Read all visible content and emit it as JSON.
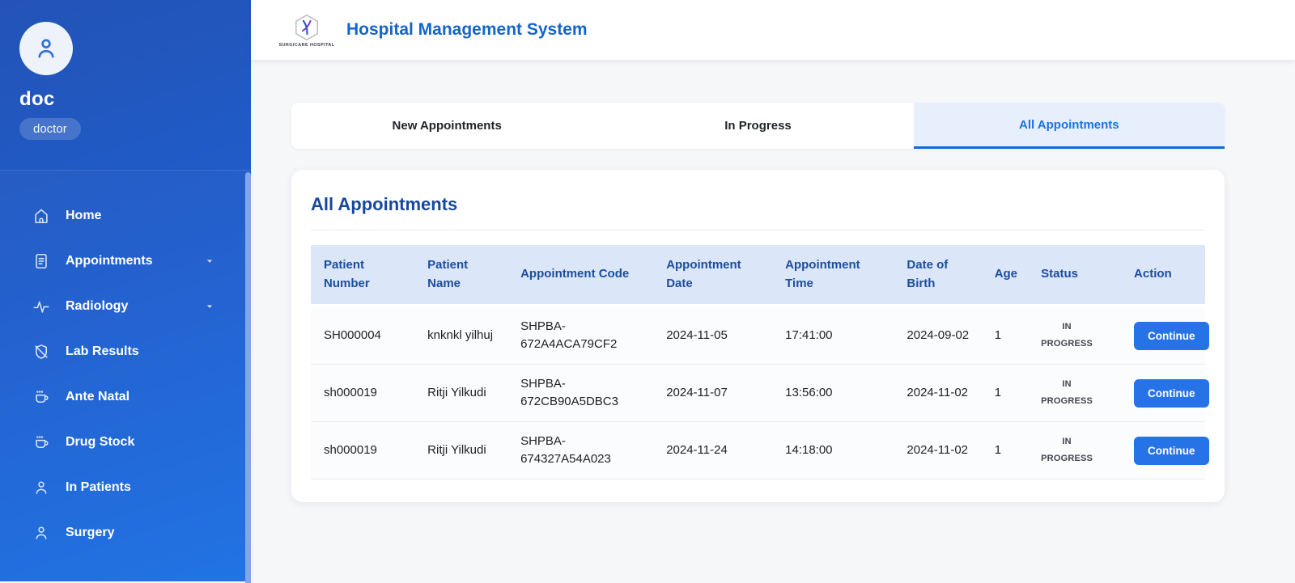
{
  "colors": {
    "accent": "#1a73e8",
    "sidebar_gradient_top": "#2353b6",
    "sidebar_gradient_bottom": "#1c70e4",
    "header_title": "#1565c8",
    "card_title": "#17489e",
    "table_header_bg": "#dbe7f8",
    "table_header_text": "#1c4d9e",
    "active_tab_bg": "#e7effc",
    "active_tab_underline": "#1668d8",
    "button_bg": "#2673e8"
  },
  "sidebar": {
    "user": {
      "name": "doc",
      "role": "doctor",
      "avatar_icon": "person-icon"
    },
    "scrollbar": true,
    "items": [
      {
        "label": "Home",
        "icon": "home-icon",
        "expandable": false
      },
      {
        "label": "Appointments",
        "icon": "document-icon",
        "expandable": true
      },
      {
        "label": "Radiology",
        "icon": "activity-icon",
        "expandable": true
      },
      {
        "label": "Lab Results",
        "icon": "lab-slash-icon",
        "expandable": false
      },
      {
        "label": "Ante Natal",
        "icon": "cup-icon",
        "expandable": false
      },
      {
        "label": "Drug Stock",
        "icon": "cup-icon",
        "expandable": false
      },
      {
        "label": "In Patients",
        "icon": "person-icon",
        "expandable": false
      },
      {
        "label": "Surgery",
        "icon": "person-icon",
        "expandable": false
      }
    ]
  },
  "header": {
    "title": "Hospital Management System",
    "logo_text": "SURGICARE HOSPITAL",
    "logo_icon": "hexagon-h-logo"
  },
  "tabs": [
    {
      "label": "New Appointments",
      "active": false
    },
    {
      "label": "In Progress",
      "active": false
    },
    {
      "label": "All Appointments",
      "active": true
    }
  ],
  "main": {
    "section_title": "All Appointments",
    "table": {
      "columns": [
        "Patient Number",
        "Patient Name",
        "Appointment Code",
        "Appointment Date",
        "Appointment Time",
        "Date of Birth",
        "Age",
        "Status",
        "Action"
      ],
      "rows": [
        {
          "patient_number": "SH000004",
          "patient_name": "knknkl yilhuj",
          "appointment_code": "SHPBA-672A4ACA79CF2",
          "appointment_date": "2024-11-05",
          "appointment_time": "17:41:00",
          "date_of_birth": "2024-09-02",
          "age": "1",
          "status": "IN PROGRESS",
          "action_label": "Continue"
        },
        {
          "patient_number": "sh000019",
          "patient_name": "Ritji Yilkudi",
          "appointment_code": "SHPBA-672CB90A5DBC3",
          "appointment_date": "2024-11-07",
          "appointment_time": "13:56:00",
          "date_of_birth": "2024-11-02",
          "age": "1",
          "status": "IN PROGRESS",
          "action_label": "Continue"
        },
        {
          "patient_number": "sh000019",
          "patient_name": "Ritji Yilkudi",
          "appointment_code": "SHPBA-674327A54A023",
          "appointment_date": "2024-11-24",
          "appointment_time": "14:18:00",
          "date_of_birth": "2024-11-02",
          "age": "1",
          "status": "IN PROGRESS",
          "action_label": "Continue"
        }
      ]
    }
  }
}
